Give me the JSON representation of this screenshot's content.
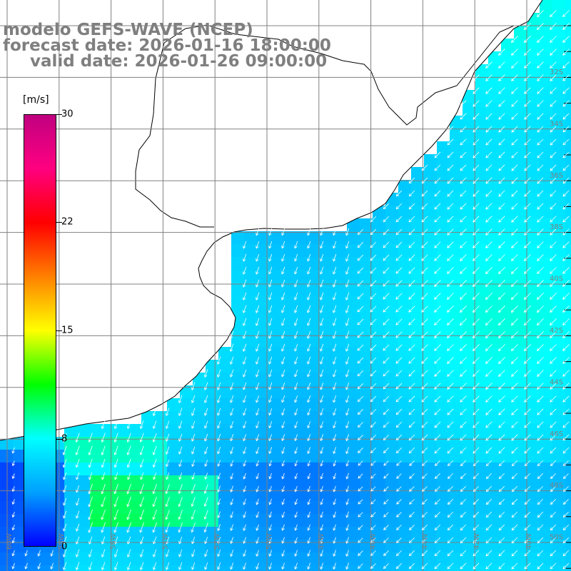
{
  "titles": {
    "model": "modelo GEFS-WAVE (NCEP)",
    "forecast": "forecast date: 2026-01-16 18:00:00",
    "valid": "valid date: 2026-01-26 09:00:00"
  },
  "colorbar": {
    "unit": "[m/s]",
    "ticks": [
      "30",
      "22",
      "15",
      "8",
      "0"
    ],
    "tick_values": [
      30,
      22,
      15,
      8,
      0
    ],
    "range": [
      0,
      30
    ],
    "colors": [
      "#0000ff",
      "#00a0ff",
      "#00ffff",
      "#00ff00",
      "#ffff00",
      "#ff8000",
      "#ff0000",
      "#ff0080",
      "#c00080"
    ]
  },
  "map": {
    "land_color": "#ffffff",
    "grid_color": "#808080",
    "vector_color": "#ffffff",
    "field_base_color": "#00bbee",
    "lat_labels": [
      "32S",
      "34S",
      "36S",
      "38S",
      "40S",
      "42S",
      "44S",
      "46S",
      "48S",
      "50S"
    ],
    "lon_labels": [
      "60W",
      "58W",
      "56W",
      "54W",
      "52W",
      "50W",
      "48W",
      "46W",
      "44W",
      "42W",
      "40W"
    ],
    "grid_on": true,
    "projection_note": ""
  }
}
